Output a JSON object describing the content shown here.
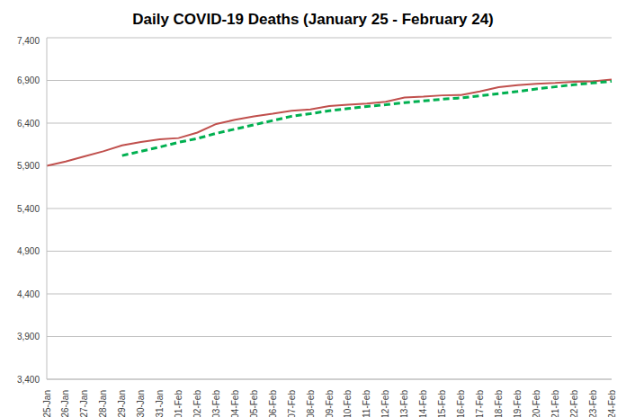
{
  "chart_data": {
    "type": "line",
    "title": "Daily COVID-19 Deaths (January 25 - February 24)",
    "categories": [
      "25-Jan",
      "26-Jan",
      "27-Jan",
      "28-Jan",
      "29-Jan",
      "30-Jan",
      "31-Jan",
      "01-Feb",
      "02-Feb",
      "03-Feb",
      "04-Feb",
      "05-Feb",
      "06-Feb",
      "07-Feb",
      "08-Feb",
      "09-Feb",
      "10-Feb",
      "11-Feb",
      "12-Feb",
      "13-Feb",
      "14-Feb",
      "15-Feb",
      "16-Feb",
      "17-Feb",
      "18-Feb",
      "19-Feb",
      "20-Feb",
      "21-Feb",
      "22-Feb",
      "23-Feb",
      "24-Feb"
    ],
    "series": [
      {
        "color": "#c0504d",
        "line_style": "solid",
        "values": [
          5900,
          5950,
          6010,
          6070,
          6140,
          6180,
          6210,
          6225,
          6290,
          6390,
          6440,
          6480,
          6510,
          6545,
          6560,
          6600,
          6615,
          6630,
          6650,
          6700,
          6710,
          6725,
          6730,
          6770,
          6820,
          6845,
          6860,
          6870,
          6885,
          6890,
          6910
        ]
      },
      {
        "color": "#00b050",
        "line_style": "dashed",
        "values": [
          null,
          null,
          null,
          null,
          6020,
          6070,
          6120,
          6175,
          6220,
          6280,
          6330,
          6380,
          6430,
          6480,
          6510,
          6545,
          6570,
          6595,
          6615,
          6640,
          6660,
          6680,
          6695,
          6720,
          6745,
          6770,
          6800,
          6825,
          6850,
          6870,
          6890
        ]
      }
    ],
    "ylim": [
      3400,
      7400
    ],
    "yticks": [
      {
        "value": 3400,
        "label": "3,400"
      },
      {
        "value": 3900,
        "label": "3,900"
      },
      {
        "value": 4400,
        "label": "4,400"
      },
      {
        "value": 4900,
        "label": "4,900"
      },
      {
        "value": 5400,
        "label": "5,400"
      },
      {
        "value": 5900,
        "label": "5,900"
      },
      {
        "value": 6400,
        "label": "6,400"
      },
      {
        "value": 6900,
        "label": "6,900"
      },
      {
        "value": 7400,
        "label": "7,400"
      }
    ],
    "grid": true
  }
}
